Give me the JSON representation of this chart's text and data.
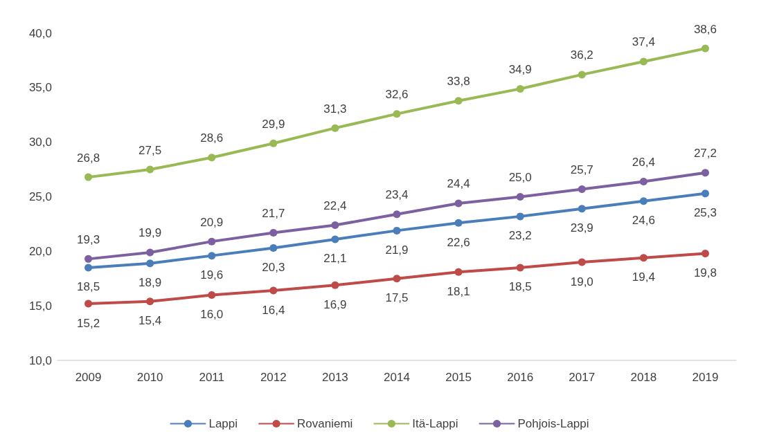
{
  "chart_data": {
    "type": "line",
    "categories": [
      "2009",
      "2010",
      "2011",
      "2012",
      "2013",
      "2014",
      "2015",
      "2016",
      "2017",
      "2018",
      "2019"
    ],
    "series": [
      {
        "name": "Lappi",
        "color": "#4a7ebb",
        "values": [
          18.5,
          18.9,
          19.6,
          20.3,
          21.1,
          21.9,
          22.6,
          23.2,
          23.9,
          24.6,
          25.3
        ],
        "value_labels": [
          "18,5",
          "18,9",
          "19,6",
          "20,3",
          "21,1",
          "21,9",
          "22,6",
          "23,2",
          "23,9",
          "24,6",
          "25,3"
        ]
      },
      {
        "name": "Rovaniemi",
        "color": "#be4b48",
        "values": [
          15.2,
          15.4,
          16.0,
          16.4,
          16.9,
          17.5,
          18.1,
          18.5,
          19.0,
          19.4,
          19.8
        ],
        "value_labels": [
          "15,2",
          "15,4",
          "16,0",
          "16,4",
          "16,9",
          "17,5",
          "18,1",
          "18,5",
          "19,0",
          "19,4",
          "19,8"
        ]
      },
      {
        "name": "Itä-Lappi",
        "color": "#98b954",
        "values": [
          26.8,
          27.5,
          28.6,
          29.9,
          31.3,
          32.6,
          33.8,
          34.9,
          36.2,
          37.4,
          38.6
        ],
        "value_labels": [
          "26,8",
          "27,5",
          "28,6",
          "29,9",
          "31,3",
          "32,6",
          "33,8",
          "34,9",
          "36,2",
          "37,4",
          "38,6"
        ]
      },
      {
        "name": "Pohjois-Lappi",
        "color": "#7d60a0",
        "values": [
          19.3,
          19.9,
          20.9,
          21.7,
          22.4,
          23.4,
          24.4,
          25.0,
          25.7,
          26.4,
          27.2
        ],
        "value_labels": [
          "19,3",
          "19,9",
          "20,9",
          "21,7",
          "22,4",
          "23,4",
          "24,4",
          "25,0",
          "25,7",
          "26,4",
          "27,2"
        ]
      }
    ],
    "ylim": [
      10,
      40
    ],
    "yticks": [
      {
        "value": 10,
        "label": "10,0"
      },
      {
        "value": 15,
        "label": "15,0"
      },
      {
        "value": 20,
        "label": "20,0"
      },
      {
        "value": 25,
        "label": "25,0"
      },
      {
        "value": 30,
        "label": "30,0"
      },
      {
        "value": 35,
        "label": "35,0"
      },
      {
        "value": 40,
        "label": "40,0"
      }
    ],
    "grid": false,
    "legend": "bottom",
    "marker": "circle",
    "line_style": "solid"
  }
}
